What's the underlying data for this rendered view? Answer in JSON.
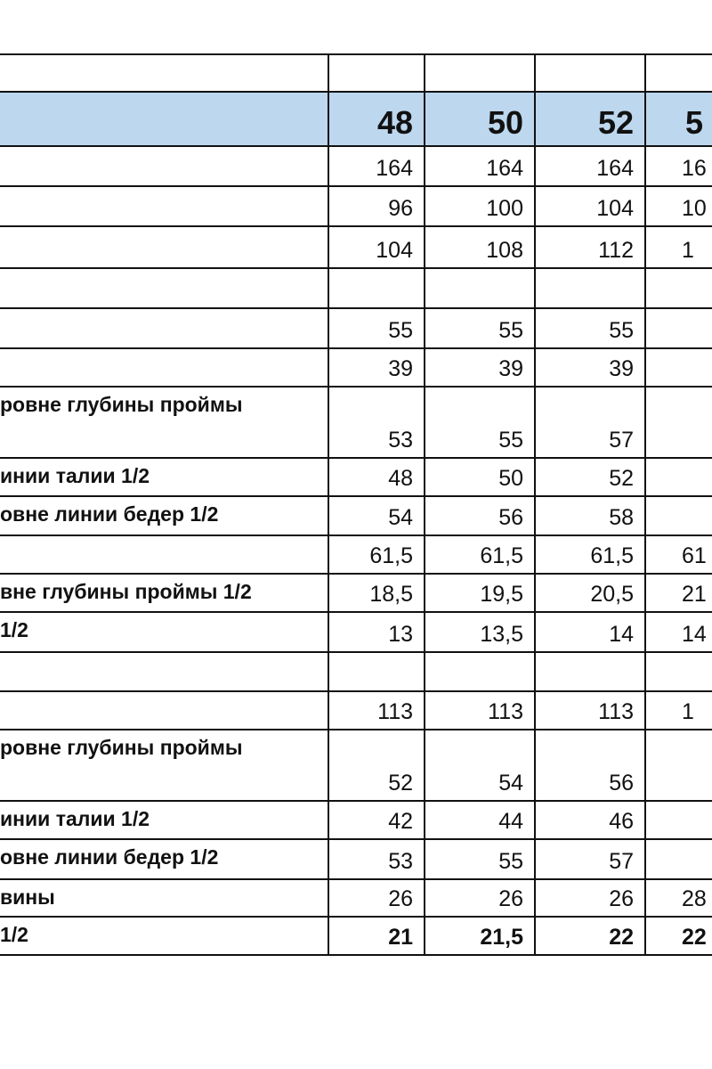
{
  "header": {
    "label": "",
    "sizes": [
      "48",
      "50",
      "52"
    ],
    "partial_size": "5"
  },
  "rows": [
    {
      "label": "",
      "values": [
        "164",
        "164",
        "164"
      ],
      "partial": "16",
      "bold": false
    },
    {
      "label": "",
      "values": [
        "96",
        "100",
        "104"
      ],
      "partial": "10",
      "bold": false
    },
    {
      "label": "",
      "values": [
        "104",
        "108",
        "112"
      ],
      "partial": "1",
      "bold": false
    },
    {
      "label": "",
      "values": [
        "",
        "",
        ""
      ],
      "partial": "",
      "bold": false
    },
    {
      "label": "",
      "values": [
        "55",
        "55",
        "55"
      ],
      "partial": "",
      "bold": false
    },
    {
      "label": "",
      "values": [
        "39",
        "39",
        "39"
      ],
      "partial": "",
      "bold": false
    },
    {
      "label": "ровне глубины проймы",
      "values": [
        "53",
        "55",
        "57"
      ],
      "partial": "",
      "bold": false
    },
    {
      "label": "инии талии 1/2",
      "values": [
        "48",
        "50",
        "52"
      ],
      "partial": "",
      "bold": false
    },
    {
      "label": "овне линии бедер 1/2",
      "values": [
        "54",
        "56",
        "58"
      ],
      "partial": "",
      "bold": false
    },
    {
      "label": "",
      "values": [
        "61,5",
        "61,5",
        "61,5"
      ],
      "partial": "61",
      "bold": false
    },
    {
      "label": "вне глубины проймы 1/2",
      "values": [
        "18,5",
        "19,5",
        "20,5"
      ],
      "partial": "21",
      "bold": false
    },
    {
      "label": "1/2",
      "values": [
        "13",
        "13,5",
        "14"
      ],
      "partial": "14",
      "bold": false
    },
    {
      "label": "",
      "values": [
        "",
        "",
        ""
      ],
      "partial": "",
      "bold": false
    },
    {
      "label": "",
      "values": [
        "113",
        "113",
        "113"
      ],
      "partial": "1",
      "bold": false
    },
    {
      "label": "ровне глубины проймы",
      "values": [
        "52",
        "54",
        "56"
      ],
      "partial": "",
      "bold": false
    },
    {
      "label": "инии талии 1/2",
      "values": [
        "42",
        "44",
        "46"
      ],
      "partial": "",
      "bold": false
    },
    {
      "label": "овне линии бедер 1/2",
      "values": [
        "53",
        "55",
        "57"
      ],
      "partial": "",
      "bold": false
    },
    {
      "label": "вины",
      "values": [
        "26",
        "26",
        "26"
      ],
      "partial": "28",
      "bold": false
    },
    {
      "label": "1/2",
      "values": [
        "21",
        "21,5",
        "22"
      ],
      "partial": "22",
      "bold": true
    }
  ],
  "colors": {
    "header_bg": "#bdd7ee",
    "border": "#111111"
  }
}
